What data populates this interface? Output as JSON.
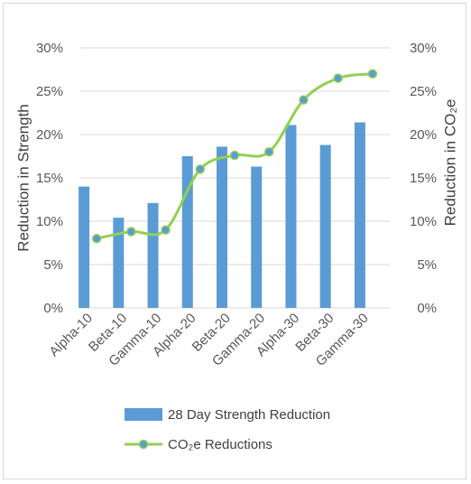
{
  "chart_data": {
    "type": "bar",
    "categories": [
      "Alpha-10",
      "Beta-10",
      "Gamma-10",
      "Alpha-20",
      "Beta-20",
      "Gamma-20",
      "Alpha-30",
      "Beta-30",
      "Gamma-30"
    ],
    "series": [
      {
        "name": "28 Day Strength Reduction",
        "type": "bar",
        "axis": "left",
        "values": [
          14.0,
          10.4,
          12.1,
          17.5,
          18.6,
          16.3,
          21.1,
          18.8,
          21.4
        ]
      },
      {
        "name": "CO₂e Reductions",
        "type": "line",
        "smooth": true,
        "axis": "right",
        "values": [
          8.0,
          8.8,
          9.0,
          16.0,
          17.6,
          18.0,
          24.0,
          26.5,
          27.0
        ]
      }
    ],
    "ylabel_left": "Reduction in Strength",
    "ylabel_right": "Reduction in CO₂e",
    "ylim_left": [
      0,
      30
    ],
    "ylim_right": [
      0,
      30
    ],
    "yticks": [
      "0%",
      "5%",
      "10%",
      "15%",
      "20%",
      "25%",
      "30%"
    ],
    "grid": true,
    "legend_position": "bottom",
    "colors": {
      "bar": "#5b9bd5",
      "line": "#92d050",
      "marker_fill": "#5b9bd5",
      "grid": "#d9d9d9"
    }
  }
}
